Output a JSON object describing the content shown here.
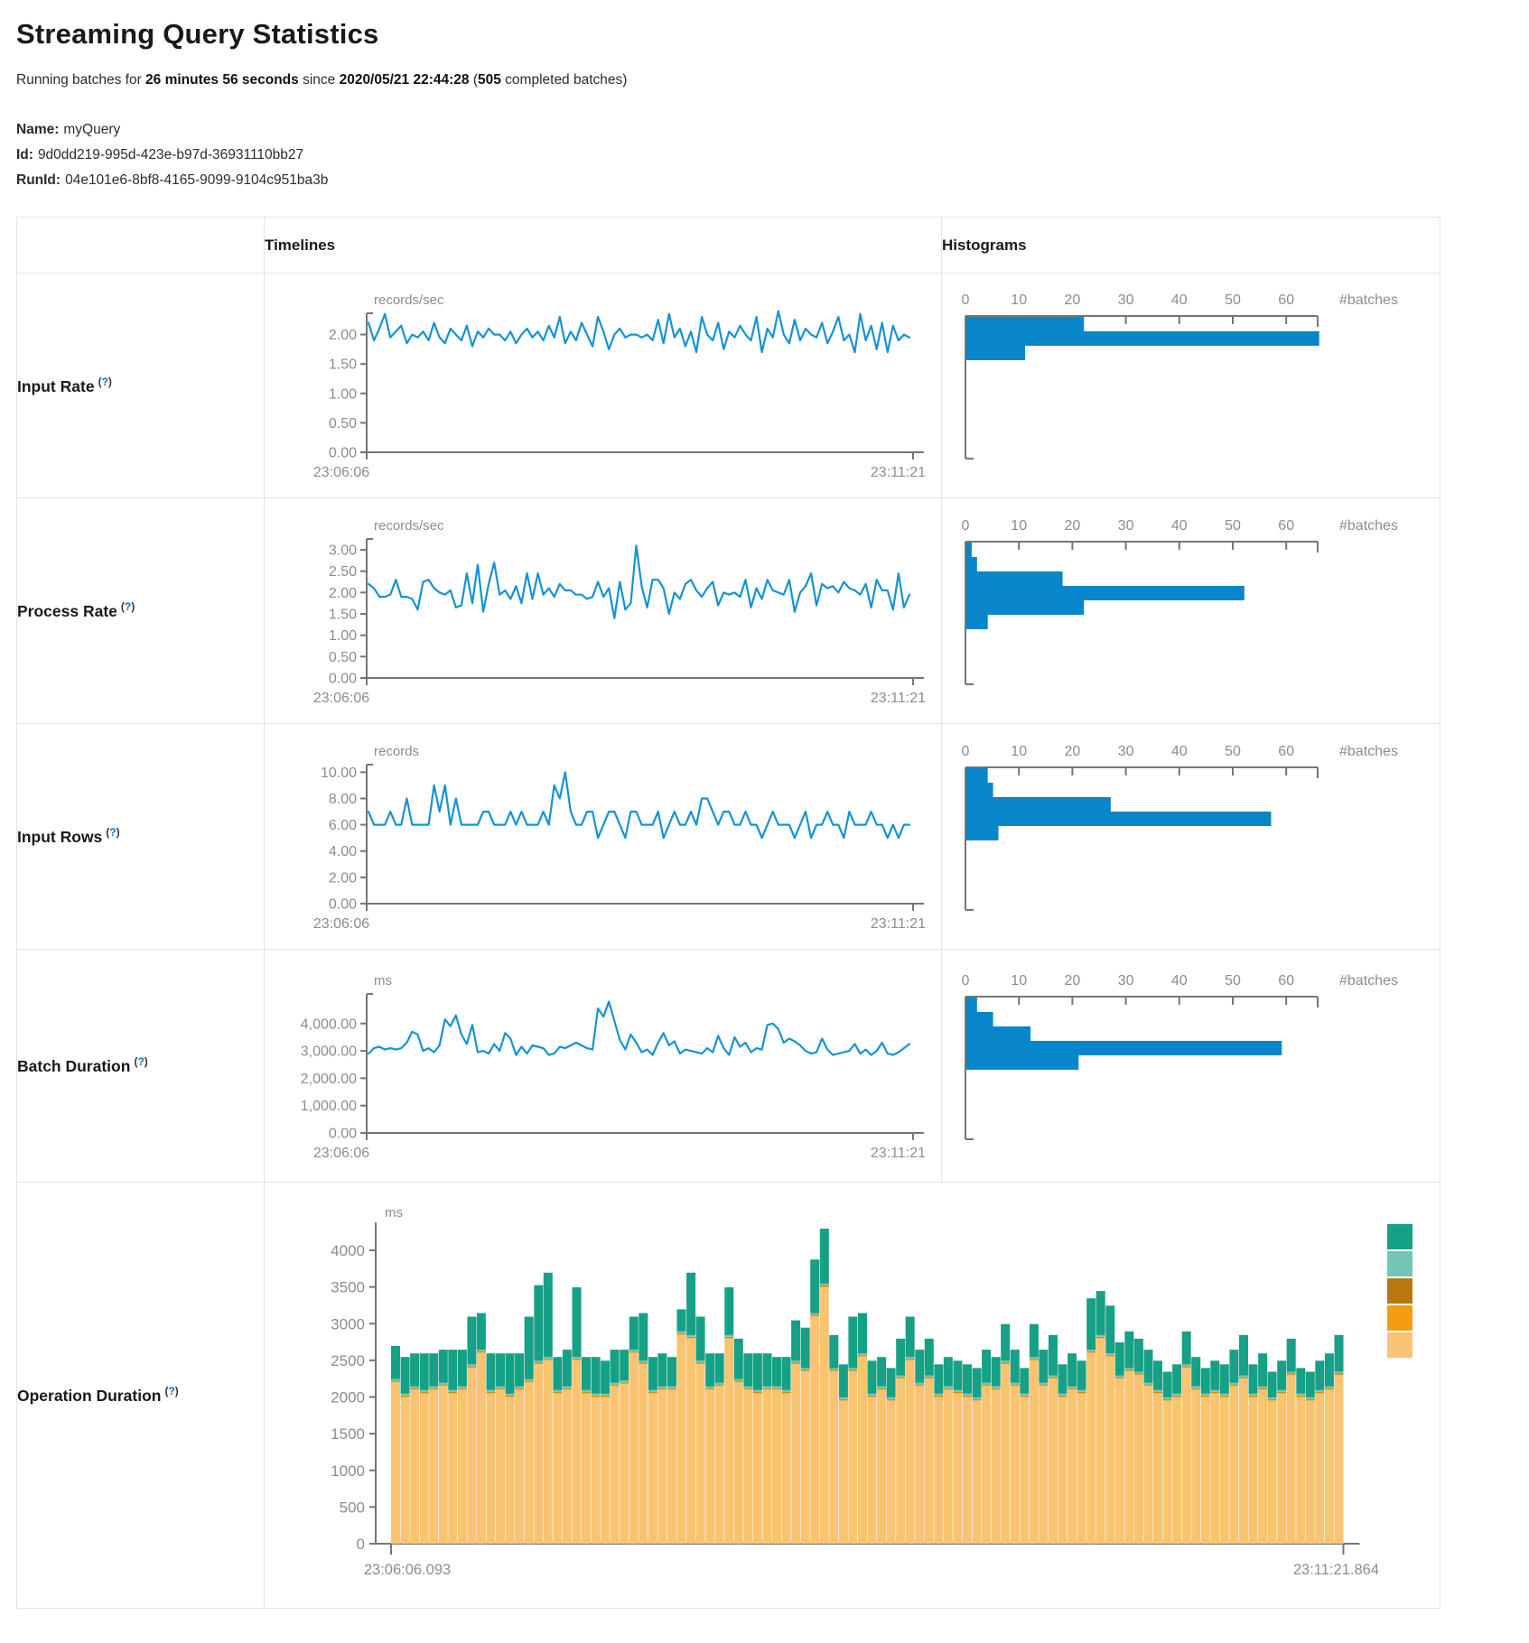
{
  "page": {
    "title": "Streaming Query Statistics",
    "subtitle": {
      "prefix": "Running batches for ",
      "duration": "26 minutes 56 seconds",
      "since_word": " since ",
      "start_time": "2020/05/21 22:44:28",
      "open_paren": " (",
      "completed_count": "505",
      "suffix": " completed batches)"
    },
    "meta": {
      "name_label": "Name:",
      "name_value": "myQuery",
      "id_label": "Id:",
      "id_value": "9d0dd219-995d-423e-b97d-36931110bb27",
      "runid_label": "RunId:",
      "runid_value": "04e101e6-8bf8-4165-9099-9104c951ba3b"
    }
  },
  "table": {
    "timelines_header": "Timelines",
    "histograms_header": "Histograms",
    "rows": [
      {
        "label": "Input Rate",
        "help_open": "(",
        "help_q": "?",
        "help_close": ")"
      },
      {
        "label": "Process Rate",
        "help_open": "(",
        "help_q": "?",
        "help_close": ")"
      },
      {
        "label": "Input Rows",
        "help_open": "(",
        "help_q": "?",
        "help_close": ")"
      },
      {
        "label": "Batch Duration",
        "help_open": "(",
        "help_q": "?",
        "help_close": ")"
      },
      {
        "label": "Operation Duration",
        "help_open": "(",
        "help_q": "?",
        "help_close": ")"
      }
    ]
  },
  "colors": {
    "line": "#1792d2",
    "hist_bar": "#0787c9",
    "axis": "#757575",
    "tick_text": "#8c8c8c",
    "op_teal": "#16a085",
    "op_light_teal": "#73c6b6",
    "op_brown": "#b9770e",
    "op_orange": "#f39c12",
    "op_light_orange": "#f8c471"
  },
  "chart_data": [
    {
      "id": "input-rate-timeline",
      "type": "line",
      "unit": "records/sec",
      "x_start": "23:06:06",
      "x_end": "23:11:21",
      "yticks": [
        0,
        0.5,
        1,
        1.5,
        2
      ],
      "ytick_labels": [
        "0.00",
        "0.50",
        "1.00",
        "1.50",
        "2.00"
      ],
      "axis_max": 2.3,
      "values": [
        2.2,
        1.9,
        2.1,
        2.35,
        1.95,
        2.05,
        2.15,
        1.85,
        2.0,
        1.95,
        2.05,
        1.9,
        2.2,
        1.95,
        1.85,
        2.1,
        2.0,
        1.9,
        2.15,
        1.8,
        2.05,
        1.95,
        2.1,
        2.0,
        2.0,
        1.9,
        2.05,
        1.85,
        2.0,
        2.1,
        1.95,
        2.05,
        1.9,
        2.15,
        1.95,
        2.3,
        1.85,
        2.05,
        1.9,
        2.2,
        2.0,
        1.8,
        2.3,
        2.05,
        1.75,
        2.0,
        2.1,
        1.95,
        2.0,
        2.0,
        1.95,
        2.0,
        1.9,
        2.25,
        1.85,
        2.35,
        1.95,
        2.1,
        1.8,
        2.05,
        1.7,
        2.3,
        2.0,
        1.9,
        2.2,
        1.75,
        2.05,
        1.95,
        2.15,
        2.0,
        1.9,
        2.3,
        1.7,
        2.1,
        1.95,
        2.4,
        2.0,
        1.85,
        2.25,
        1.9,
        2.1,
        2.0,
        1.95,
        2.2,
        1.85,
        2.05,
        2.3,
        1.9,
        2.0,
        1.7,
        2.35,
        1.9,
        2.15,
        1.75,
        2.2,
        1.7,
        2.15,
        1.9,
        2.0,
        1.95
      ]
    },
    {
      "id": "input-rate-histogram",
      "type": "hist",
      "xlabel": "#batches",
      "xticks": [
        0,
        10,
        20,
        30,
        40,
        50,
        60
      ],
      "axis_max": 67,
      "bars": [
        22,
        66,
        11
      ]
    },
    {
      "id": "process-rate-timeline",
      "type": "line",
      "unit": "records/sec",
      "x_start": "23:06:06",
      "x_end": "23:11:21",
      "yticks": [
        0,
        0.5,
        1,
        1.5,
        2,
        2.5,
        3
      ],
      "ytick_labels": [
        "0.00",
        "0.50",
        "1.00",
        "1.50",
        "2.00",
        "2.50",
        "3.00"
      ],
      "axis_max": 3.17,
      "values": [
        2.2,
        2.1,
        1.9,
        1.9,
        1.95,
        2.3,
        1.9,
        1.9,
        1.85,
        1.6,
        2.25,
        2.3,
        2.1,
        2.0,
        1.95,
        2.05,
        1.65,
        1.7,
        2.45,
        1.75,
        2.65,
        1.55,
        2.2,
        2.7,
        1.95,
        2.05,
        1.85,
        2.15,
        1.75,
        2.45,
        1.85,
        2.45,
        1.95,
        2.1,
        1.9,
        2.2,
        2.05,
        2.05,
        1.95,
        1.95,
        1.85,
        1.9,
        2.25,
        1.9,
        2.1,
        1.4,
        2.25,
        1.6,
        1.75,
        3.1,
        2.15,
        1.65,
        2.3,
        2.3,
        2.1,
        1.5,
        2.0,
        1.85,
        2.2,
        2.3,
        2.05,
        1.9,
        2.1,
        2.25,
        1.7,
        2.0,
        1.95,
        2.0,
        1.9,
        2.3,
        1.65,
        2.1,
        1.85,
        2.3,
        2.05,
        2.0,
        1.95,
        2.3,
        1.55,
        2.0,
        2.15,
        2.45,
        1.7,
        2.2,
        2.1,
        2.15,
        2.0,
        2.25,
        2.1,
        2.05,
        1.95,
        2.2,
        1.65,
        2.3,
        2.05,
        2.05,
        1.6,
        2.45,
        1.65,
        1.95
      ]
    },
    {
      "id": "process-rate-histogram",
      "type": "hist",
      "xlabel": "#batches",
      "xticks": [
        0,
        10,
        20,
        30,
        40,
        50,
        60
      ],
      "axis_max": 67,
      "bars": [
        1,
        2,
        18,
        52,
        22,
        4
      ]
    },
    {
      "id": "input-rows-timeline",
      "type": "line",
      "unit": "records",
      "x_start": "23:06:06",
      "x_end": "23:11:21",
      "yticks": [
        0,
        2,
        4,
        6,
        8,
        10
      ],
      "ytick_labels": [
        "0.00",
        "2.00",
        "4.00",
        "6.00",
        "8.00",
        "10.00"
      ],
      "axis_max": 10.3,
      "values": [
        7,
        6,
        6,
        6,
        7,
        6,
        6,
        8,
        6,
        6,
        6,
        6,
        9,
        7,
        9,
        6,
        8,
        6,
        6,
        6,
        6,
        7,
        7,
        6,
        6,
        6,
        7,
        6,
        7,
        6,
        6,
        6,
        7,
        6,
        9,
        8,
        10,
        7,
        6,
        6,
        7,
        7,
        5,
        6,
        7,
        7,
        6,
        5,
        7,
        7,
        6,
        6,
        6,
        7,
        5,
        6,
        7,
        6,
        6,
        7,
        6,
        8,
        8,
        7,
        6,
        7,
        7,
        6,
        6,
        7,
        6,
        6,
        5,
        6,
        7,
        6,
        6,
        6,
        5,
        6,
        7,
        5,
        6,
        6,
        7,
        6,
        6,
        5,
        7,
        6,
        6,
        6,
        7,
        6,
        6,
        5,
        6,
        5,
        6,
        6
      ]
    },
    {
      "id": "input-rows-histogram",
      "type": "hist",
      "xlabel": "#batches",
      "xticks": [
        0,
        10,
        20,
        30,
        40,
        50,
        60
      ],
      "axis_max": 67,
      "bars": [
        4,
        5,
        27,
        57,
        6
      ]
    },
    {
      "id": "batch-duration-timeline",
      "type": "line",
      "unit": "ms",
      "x_start": "23:06:06",
      "x_end": "23:11:21",
      "yticks": [
        0,
        1000,
        2000,
        3000,
        4000
      ],
      "ytick_labels": [
        "0.00",
        "1,000.00",
        "2,000.00",
        "3,000.00",
        "4,000.00"
      ],
      "axis_max": 4950,
      "values": [
        2900,
        3100,
        3150,
        3050,
        3100,
        3050,
        3100,
        3300,
        3700,
        3600,
        3000,
        3100,
        2950,
        3200,
        4150,
        3900,
        4300,
        3600,
        3250,
        3950,
        2950,
        3000,
        2900,
        3250,
        3000,
        3650,
        3450,
        2850,
        3150,
        2900,
        3200,
        3150,
        3100,
        2850,
        2900,
        3150,
        3100,
        3200,
        3300,
        3200,
        3100,
        3050,
        4550,
        4250,
        4800,
        4100,
        3400,
        3050,
        3600,
        3300,
        2950,
        3050,
        2850,
        3300,
        3650,
        3200,
        3350,
        2900,
        3050,
        3000,
        2950,
        2900,
        3100,
        2950,
        3550,
        3100,
        2850,
        3500,
        3150,
        3300,
        2950,
        3100,
        3050,
        3950,
        4000,
        3800,
        3300,
        3450,
        3350,
        3200,
        3000,
        2900,
        2950,
        3450,
        3050,
        2850,
        2900,
        2950,
        3000,
        3250,
        2900,
        3050,
        2850,
        3000,
        3300,
        2900,
        2850,
        2950,
        3100,
        3250
      ]
    },
    {
      "id": "batch-duration-histogram",
      "type": "hist",
      "xlabel": "#batches",
      "xticks": [
        0,
        10,
        20,
        30,
        40,
        50,
        60
      ],
      "axis_max": 67,
      "bars": [
        2,
        5,
        12,
        59,
        21
      ]
    },
    {
      "id": "operation-duration-stacked",
      "type": "stacked",
      "unit": "ms",
      "x_start": "23:06:06.093",
      "x_end": "23:11:21.864",
      "yticks": [
        0,
        500,
        1000,
        1500,
        2000,
        2500,
        3000,
        3500,
        4000
      ],
      "ytick_labels": [
        "0",
        "500",
        "1000",
        "1500",
        "2000",
        "2500",
        "3000",
        "3500",
        "4000"
      ],
      "axis_max": 4330,
      "legend_colors": [
        "op_teal",
        "op_light_teal",
        "op_brown",
        "op_orange",
        "op_light_orange"
      ],
      "series": [
        {
          "color_key": "op_light_orange",
          "values": [
            2200,
            2000,
            2100,
            2050,
            2100,
            2150,
            2050,
            2100,
            2400,
            2600,
            2050,
            2100,
            2000,
            2100,
            2200,
            2450,
            2500,
            2050,
            2100,
            2500,
            2050,
            2000,
            2000,
            2150,
            2180,
            2600,
            2450,
            2050,
            2100,
            2100,
            2850,
            2800,
            2450,
            2100,
            2150,
            2800,
            2200,
            2100,
            2050,
            2100,
            2100,
            2050,
            2450,
            2350,
            3100,
            3500,
            2350,
            1950,
            2350,
            2550,
            2000,
            2100,
            1950,
            2250,
            2500,
            2150,
            2250,
            2000,
            2100,
            2050,
            2000,
            1950,
            2150,
            2100,
            2450,
            2150,
            2000,
            2500,
            2150,
            2250,
            2000,
            2100,
            2050,
            2600,
            2800,
            2550,
            2250,
            2350,
            2300,
            2150,
            2050,
            1950,
            2000,
            2400,
            2100,
            2000,
            2050,
            2000,
            2150,
            2250,
            2000,
            2100,
            1950,
            2050,
            2300,
            2000,
            1950,
            2050,
            2100,
            2300
          ]
        },
        {
          "color_key": "op_orange",
          "const": 12
        },
        {
          "color_key": "op_brown",
          "const": 8
        },
        {
          "color_key": "op_light_teal",
          "const": 25
        },
        {
          "color_key": "op_teal",
          "values": [
            450,
            500,
            450,
            500,
            450,
            450,
            550,
            500,
            650,
            500,
            500,
            450,
            550,
            450,
            850,
            1030,
            1150,
            450,
            500,
            950,
            450,
            500,
            450,
            450,
            420,
            450,
            650,
            450,
            450,
            400,
            300,
            850,
            600,
            450,
            400,
            650,
            550,
            450,
            500,
            450,
            400,
            450,
            550,
            550,
            730,
            750,
            450,
            450,
            700,
            550,
            450,
            400,
            400,
            500,
            550,
            450,
            500,
            400,
            400,
            400,
            400,
            400,
            450,
            400,
            500,
            450,
            350,
            450,
            450,
            550,
            400,
            450,
            400,
            700,
            600,
            650,
            450,
            500,
            450,
            450,
            400,
            350,
            400,
            450,
            400,
            350,
            400,
            400,
            450,
            550,
            400,
            450,
            350,
            400,
            450,
            350,
            350,
            400,
            450,
            500
          ]
        }
      ]
    }
  ]
}
